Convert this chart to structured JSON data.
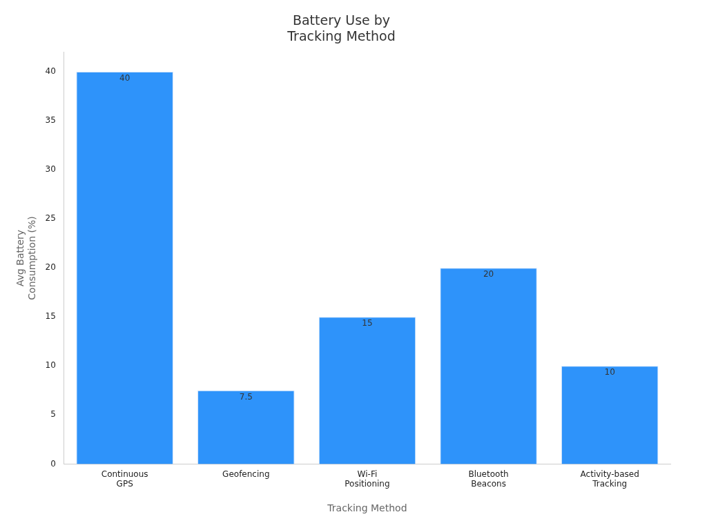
{
  "chart_data": {
    "type": "bar",
    "title": "Battery Use by Tracking Method",
    "xlabel": "Tracking Method",
    "ylabel": "Avg Battery Consumption (%)",
    "categories": [
      "Continuous GPS",
      "Geofencing",
      "Wi-Fi Positioning",
      "Bluetooth Beacons",
      "Activity-based Tracking"
    ],
    "values": [
      40,
      7.5,
      15,
      20,
      10
    ],
    "color": "#2e93fa",
    "ylim": [
      0,
      42
    ],
    "yticks": [
      0,
      5,
      10,
      15,
      20,
      25,
      30,
      35,
      40
    ],
    "grid": false,
    "legend": false,
    "data_labels": true
  }
}
